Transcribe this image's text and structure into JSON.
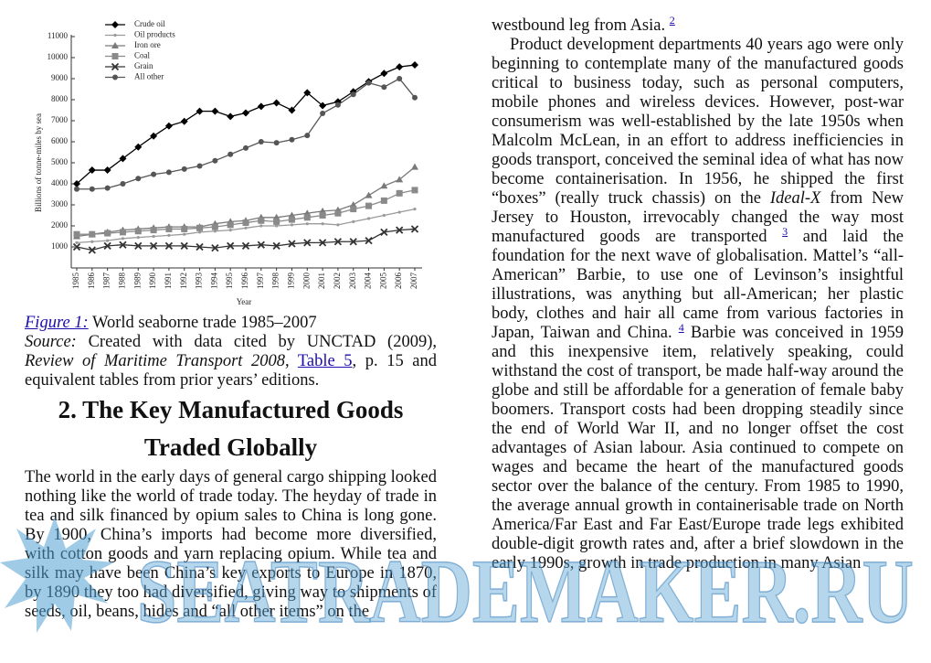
{
  "chart_data": {
    "type": "line",
    "y_label": "Billions of tonne-miles by sea",
    "x_label": "Year",
    "categories": [
      "1985",
      "1986",
      "1987",
      "1988",
      "1989",
      "1990",
      "1991",
      "1992",
      "1993",
      "1994",
      "1995",
      "1996",
      "1997",
      "1998",
      "1999",
      "2000",
      "2001",
      "2002",
      "2003",
      "2004",
      "2005",
      "2006",
      "2007"
    ],
    "ylim": [
      0,
      11000
    ],
    "yticks": [
      1000,
      2000,
      3000,
      4000,
      5000,
      6000,
      7000,
      8000,
      9000,
      10000,
      11000
    ],
    "series": [
      {
        "name": "Crude oil",
        "color": "#000000",
        "marker": "diamond",
        "values": [
          4000,
          4650,
          4650,
          5200,
          5750,
          6270,
          6750,
          6970,
          7450,
          7450,
          7200,
          7370,
          7680,
          7850,
          7500,
          8330,
          7720,
          7900,
          8380,
          8860,
          9250,
          9560,
          9650
        ]
      },
      {
        "name": "Oil products",
        "color": "#9a9a9a",
        "marker": "dot",
        "values": [
          1200,
          1250,
          1300,
          1400,
          1450,
          1500,
          1550,
          1600,
          1700,
          1750,
          1800,
          1900,
          2000,
          2000,
          2050,
          2100,
          2100,
          2050,
          2200,
          2350,
          2500,
          2650,
          2800
        ]
      },
      {
        "name": "Iron ore",
        "color": "#7a7a7a",
        "marker": "triangle",
        "values": [
          1500,
          1600,
          1700,
          1800,
          1850,
          1900,
          1950,
          1950,
          1950,
          2100,
          2200,
          2250,
          2400,
          2400,
          2500,
          2600,
          2700,
          2750,
          3000,
          3450,
          3900,
          4200,
          4800
        ]
      },
      {
        "name": "Coal",
        "color": "#8a8a8a",
        "marker": "square",
        "values": [
          1600,
          1600,
          1650,
          1700,
          1750,
          1800,
          1850,
          1850,
          1900,
          1950,
          2050,
          2150,
          2250,
          2200,
          2300,
          2400,
          2500,
          2600,
          2800,
          2950,
          3200,
          3550,
          3700
        ]
      },
      {
        "name": "Grain",
        "color": "#333333",
        "marker": "cross",
        "values": [
          1000,
          850,
          1050,
          1100,
          1050,
          1050,
          1050,
          1050,
          1000,
          950,
          1050,
          1050,
          1100,
          1050,
          1150,
          1200,
          1200,
          1250,
          1250,
          1300,
          1700,
          1800,
          1850
        ]
      },
      {
        "name": "All other",
        "color": "#555555",
        "marker": "circle",
        "values": [
          3750,
          3750,
          3800,
          4000,
          4250,
          4450,
          4550,
          4700,
          4850,
          5100,
          5400,
          5700,
          6000,
          5950,
          6100,
          6300,
          7350,
          7750,
          8250,
          8800,
          8600,
          9000,
          8100
        ]
      }
    ]
  },
  "document": {
    "caption": {
      "figure_label": "Figure 1:",
      "title": "World seaborne trade 1985–2007"
    },
    "source": {
      "label": "Source:",
      "text1": "Created with data cited by UNCTAD (2009),",
      "publication": "Review of Maritime Transport 2008",
      "link": "Table 5",
      "text2": ", p. 15 and equivalent tables from prior years’ editions."
    },
    "heading": "2. The Key Manufactured Goods Traded Globally",
    "left_paragraph": "The world in the early days of general cargo shipping looked nothing like the world of trade today. The heyday of trade in tea and silk financed by opium sales to China is long gone. By 1900, China’s imports had become more diversified, with cotton goods and yarn replacing opium. While tea and silk may have been China’s key exports to Europe in 1870, by 1890 they too had diversified, giving way to shipments of seeds, oil, beans, hides and “all other items” on the",
    "right_top": {
      "text": "westbound leg from Asia.",
      "footnote": "2"
    },
    "right_paragraph": {
      "part1": "Product development departments 40 years ago were only beginning to contemplate many of the manufactured goods critical to business today, such as personal computers, mobile phones and wireless devices. However, post-war consumerism was well-established by the late 1950s when Malcolm McLean, in an effort to address inefficiencies in goods transport, conceived the seminal idea of what has now become containerisation. In 1956, he shipped the first “boxes” (really truck chassis) on the",
      "ship": "Ideal-X",
      "part2": "from New Jersey to Houston, irrevocably changed the way most manufactured goods are transported",
      "footnote3": "3",
      "part3": "and laid the foundation for the next wave of globalisation. Mattel’s “all-American” Barbie, to use one of Levinson’s insightful illustrations, was anything but all-American; her plastic body, clothes and hair all came from various factories in Japan, Taiwan and China.",
      "footnote4": "4",
      "part4": "Barbie was conceived in 1959 and this inexpensive item, relatively speaking, could withstand the cost of transport, be made half-way around the globe and still be affordable for a generation of female baby boomers. Transport costs had been dropping steadily since the end of World War II, and no longer offset the cost advantages of Asian labour. Asia continued to compete on wages and became the heart of the manufactured goods sector over the balance of the century. From 1985 to 1990, the average annual growth in containerisable trade on North America/Far East and Far East/Europe trade legs exhibited double-digit growth rates and, after a brief slowdown in the early 1990s, growth in trade production in many Asian"
    },
    "watermark": "SEATRADEMAKER.RU"
  }
}
